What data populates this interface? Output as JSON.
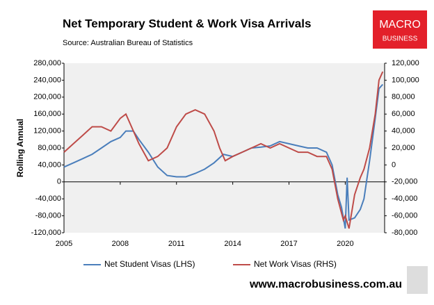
{
  "chart_data": {
    "type": "line",
    "title": "Net Temporary Student & Work Visa Arrivals",
    "source": "Source: Australian Bureau of Statistics",
    "y_label": "Rolling Annual",
    "logo": [
      "MACRO",
      "BUSINESS"
    ],
    "website": "www.macrobusiness.com.au",
    "xlim": [
      2005,
      2022.1
    ],
    "xticks": [
      2005,
      2008,
      2011,
      2014,
      2017,
      2020
    ],
    "ylim": [
      -120000,
      280000
    ],
    "yticks": [
      {
        "value": -120000,
        "label": "-120,000"
      },
      {
        "value": -80000,
        "label": "-80,000"
      },
      {
        "value": -40000,
        "label": "-40,000"
      },
      0,
      {
        "value": 40000,
        "label": "40,000"
      },
      {
        "value": 80000,
        "label": "80,000"
      },
      {
        "value": 120000,
        "label": "120,000"
      },
      {
        "value": 160000,
        "label": "160,000"
      },
      {
        "value": 200000,
        "label": "200,000"
      },
      {
        "value": 240000,
        "label": "240,000"
      },
      {
        "value": 280000,
        "label": "280,000"
      }
    ],
    "y2lim": [
      -80000,
      120000
    ],
    "y2ticks": [
      {
        "value": -80000,
        "label": "-80,000"
      },
      {
        "value": -60000,
        "label": "-60,000"
      },
      {
        "value": -40000,
        "label": "-40,000"
      },
      {
        "value": -20000,
        "label": "-20,000"
      },
      0,
      {
        "value": 20000,
        "label": "20,000"
      },
      {
        "value": 40000,
        "label": "40,000"
      },
      {
        "value": 60000,
        "label": "60,000"
      },
      {
        "value": 80000,
        "label": "80,000"
      },
      {
        "value": 100000,
        "label": "100,000"
      },
      {
        "value": 120000,
        "label": "120,000"
      }
    ],
    "series": [
      {
        "name": "Net Student Visas (LHS)",
        "color": "#4a7ebb",
        "axis": "y",
        "x": [
          2005,
          2005.5,
          2006,
          2006.5,
          2007,
          2007.5,
          2008,
          2008.3,
          2008.7,
          2009,
          2009.5,
          2010,
          2010.5,
          2011,
          2011.5,
          2012,
          2012.5,
          2013,
          2013.5,
          2014,
          2014.5,
          2015,
          2015.5,
          2016,
          2016.5,
          2017,
          2017.5,
          2018,
          2018.5,
          2019,
          2019.3,
          2019.6,
          2019.8,
          2020,
          2020.1,
          2020.2,
          2020.5,
          2020.8,
          2021,
          2021.3,
          2021.6,
          2021.8,
          2022
        ],
        "values": [
          35000,
          45000,
          55000,
          65000,
          80000,
          95000,
          105000,
          120000,
          120000,
          100000,
          70000,
          35000,
          15000,
          12000,
          12000,
          20000,
          30000,
          45000,
          65000,
          60000,
          70000,
          80000,
          82000,
          85000,
          95000,
          90000,
          85000,
          80000,
          80000,
          70000,
          40000,
          -30000,
          -60000,
          -110000,
          10000,
          -90000,
          -85000,
          -65000,
          -40000,
          50000,
          150000,
          220000,
          230000
        ]
      },
      {
        "name": "Net Work Visas (RHS)",
        "color": "#be4b48",
        "axis": "y2",
        "x": [
          2005,
          2005.5,
          2006,
          2006.5,
          2007,
          2007.5,
          2008,
          2008.3,
          2008.6,
          2009,
          2009.5,
          2010,
          2010.5,
          2011,
          2011.5,
          2012,
          2012.5,
          2013,
          2013.3,
          2013.6,
          2014,
          2014.5,
          2015,
          2015.5,
          2016,
          2016.5,
          2017,
          2017.5,
          2018,
          2018.5,
          2019,
          2019.3,
          2019.6,
          2019.9,
          2020,
          2020.2,
          2020.5,
          2020.8,
          2021,
          2021.3,
          2021.6,
          2021.8,
          2022
        ],
        "values": [
          15000,
          25000,
          35000,
          45000,
          45000,
          40000,
          55000,
          60000,
          45000,
          25000,
          5000,
          10000,
          20000,
          45000,
          60000,
          65000,
          60000,
          40000,
          20000,
          5000,
          10000,
          15000,
          20000,
          25000,
          20000,
          25000,
          20000,
          15000,
          15000,
          10000,
          10000,
          -5000,
          -40000,
          -65000,
          -60000,
          -75000,
          -35000,
          -15000,
          -5000,
          20000,
          60000,
          100000,
          110000
        ]
      }
    ]
  }
}
